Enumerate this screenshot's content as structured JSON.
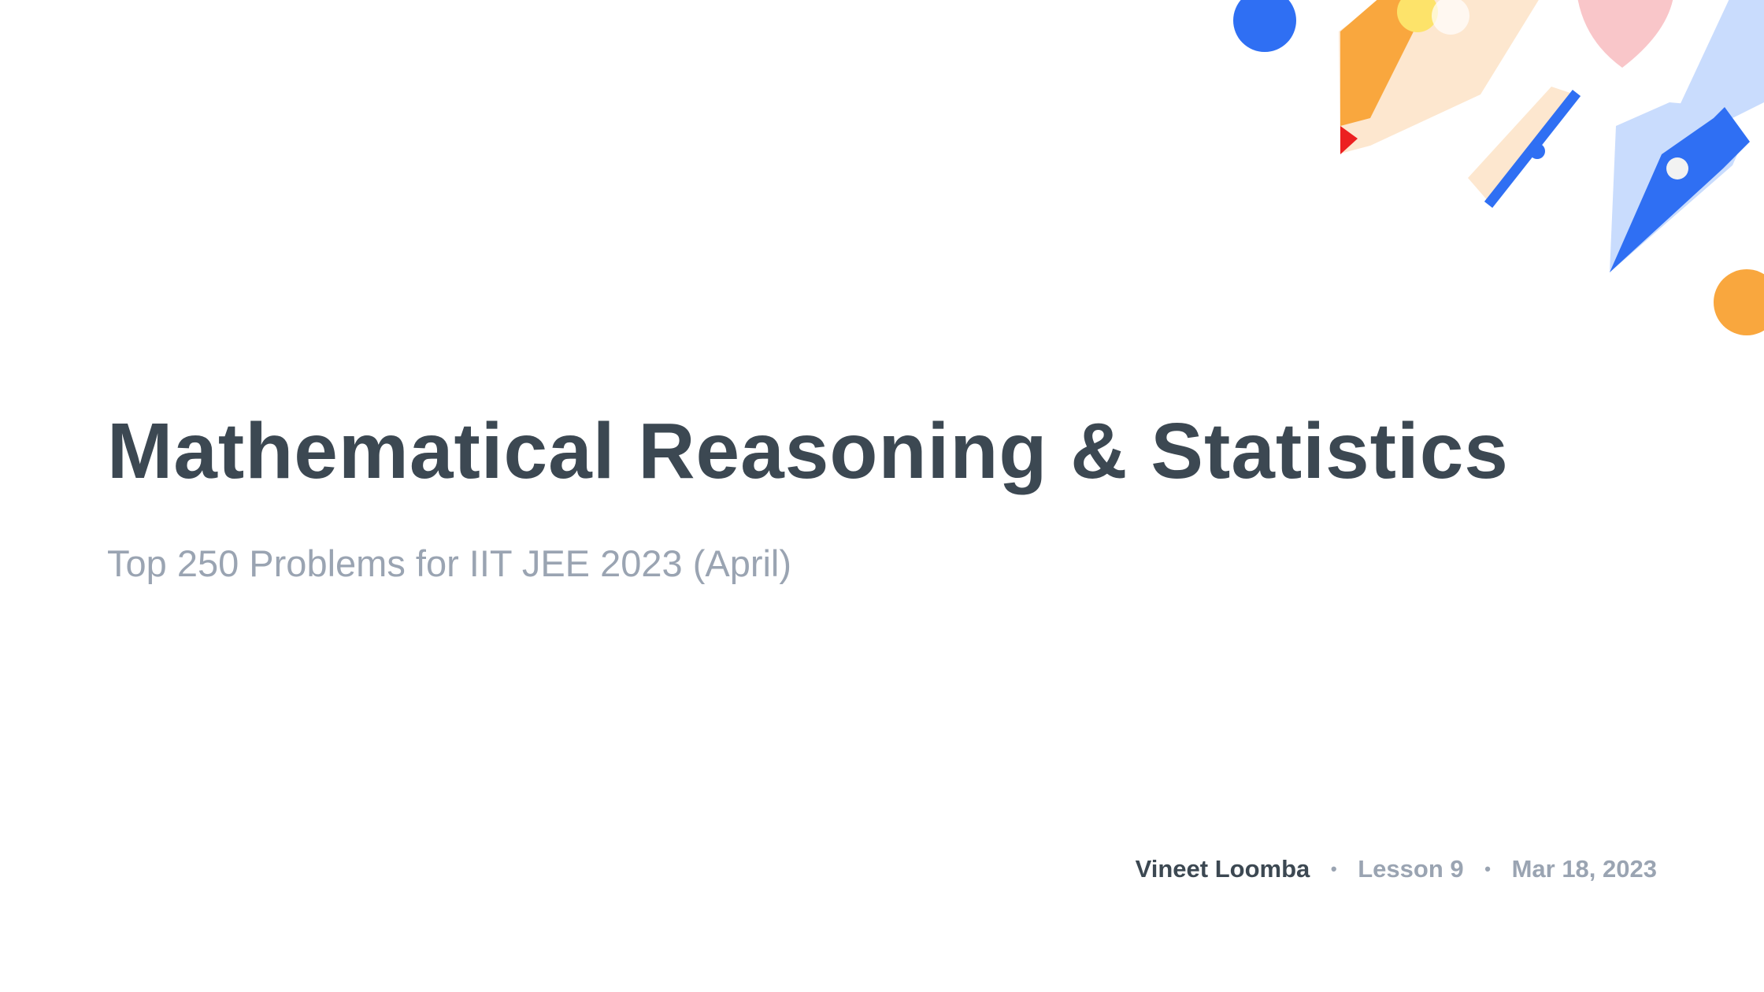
{
  "slide": {
    "title": "Mathematical Reasoning & Statistics",
    "subtitle": "Top 250 Problems for IIT JEE 2023 (April)",
    "author": "Vineet Loomba",
    "separator": "•",
    "lesson": "Lesson 9",
    "date": "Mar 18, 2023"
  },
  "decor": {
    "icons": [
      "blue-dot-icon",
      "pencil-icon",
      "pink-shape-icon",
      "ruler-icon",
      "pen-nib-icon",
      "orange-dot-icon"
    ],
    "colors": {
      "blue": "#2f6ff3",
      "orange": "#f9a73e",
      "yellow": "#fde36a",
      "pink": "#f9c6c9",
      "red": "#ec2020",
      "light_blue": "#c9dcfd",
      "peach": "#fde7cf"
    }
  }
}
